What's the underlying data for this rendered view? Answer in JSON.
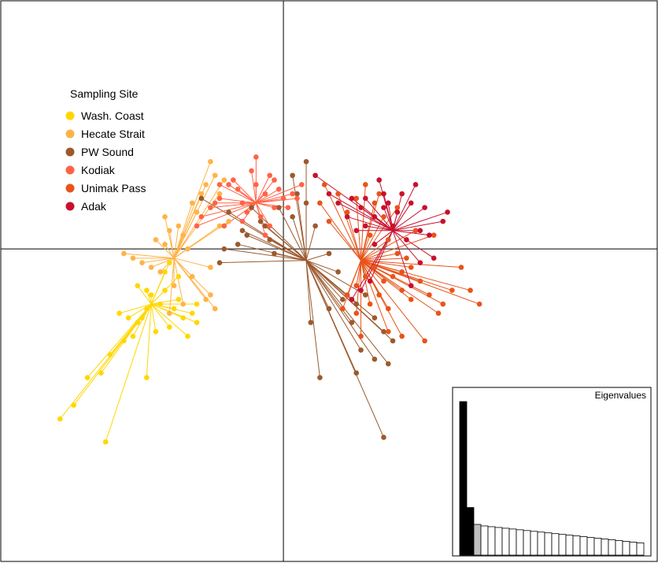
{
  "chart_data": {
    "type": "scatter",
    "subtype": "dapc-star-plot",
    "title": "",
    "xlabel": "",
    "ylabel": "",
    "xlim": [
      -6.2,
      8.2
    ],
    "ylim": [
      -6.8,
      5.4
    ],
    "axes_lines_at_origin": true,
    "grid": false,
    "legend": {
      "title": "Sampling Site",
      "placement": "top-left",
      "entries": [
        "Wash. Coast",
        "Hecate Strait",
        "PW Sound",
        "Kodiak",
        "Unimak Pass",
        "Adak"
      ]
    },
    "series": [
      {
        "name": "Wash. Coast",
        "color": "#FFD700",
        "centroid": [
          -2.9,
          -1.2
        ],
        "points": [
          [
            -4.9,
            -3.7
          ],
          [
            -4.6,
            -3.4
          ],
          [
            -4.3,
            -2.8
          ],
          [
            -4.0,
            -2.7
          ],
          [
            -3.8,
            -2.3
          ],
          [
            -3.5,
            -2.0
          ],
          [
            -3.4,
            -1.5
          ],
          [
            -3.3,
            -1.9
          ],
          [
            -3.2,
            -1.6
          ],
          [
            -3.1,
            -1.5
          ],
          [
            -3.0,
            -1.3
          ],
          [
            -3.0,
            -0.9
          ],
          [
            -2.9,
            -1.0
          ],
          [
            -2.8,
            -1.8
          ],
          [
            -2.7,
            -1.2
          ],
          [
            -2.6,
            -0.9
          ],
          [
            -2.5,
            -1.7
          ],
          [
            -2.4,
            -1.3
          ],
          [
            -2.3,
            -1.1
          ],
          [
            -2.2,
            -1.5
          ],
          [
            -2.1,
            -1.9
          ],
          [
            -2.0,
            -1.4
          ],
          [
            -1.9,
            -1.2
          ],
          [
            -1.9,
            -1.6
          ],
          [
            -3.2,
            -0.8
          ],
          [
            -2.6,
            -0.5
          ],
          [
            -2.5,
            -0.3
          ],
          [
            -2.3,
            -0.6
          ],
          [
            -3.6,
            -1.4
          ],
          [
            -3.0,
            -2.8
          ],
          [
            -3.9,
            -4.2
          ]
        ]
      },
      {
        "name": "Hecate Strait",
        "color": "#FFB347",
        "centroid": [
          -2.4,
          -0.2
        ],
        "points": [
          [
            -3.3,
            -0.2
          ],
          [
            -3.1,
            -0.3
          ],
          [
            -2.9,
            -0.4
          ],
          [
            -2.7,
            -0.5
          ],
          [
            -2.6,
            0.1
          ],
          [
            -2.5,
            0.4
          ],
          [
            -2.3,
            0.5
          ],
          [
            -2.2,
            0.3
          ],
          [
            -2.1,
            0.0
          ],
          [
            -2.0,
            -0.6
          ],
          [
            -1.9,
            0.8
          ],
          [
            -1.8,
            1.2
          ],
          [
            -1.7,
            1.4
          ],
          [
            -1.6,
            1.9
          ],
          [
            -1.5,
            1.6
          ],
          [
            -1.4,
            1.2
          ],
          [
            -1.6,
            -1.0
          ],
          [
            -1.5,
            -1.3
          ],
          [
            -1.6,
            -0.4
          ],
          [
            -2.8,
            0.2
          ],
          [
            -2.4,
            -0.8
          ],
          [
            -2.6,
            0.7
          ],
          [
            -1.2,
            0.6
          ],
          [
            -1.4,
            0.5
          ],
          [
            -2.0,
            1.0
          ],
          [
            -1.7,
            -1.1
          ],
          [
            -2.2,
            -1.2
          ],
          [
            -1.3,
            1.5
          ],
          [
            -2.5,
            -1.4
          ],
          [
            -3.5,
            -0.1
          ]
        ]
      },
      {
        "name": "PW Sound",
        "color": "#9B5A2E",
        "centroid": [
          0.5,
          -0.25
        ],
        "points": [
          [
            -1.3,
            0.0
          ],
          [
            -1.0,
            0.1
          ],
          [
            -0.8,
            0.3
          ],
          [
            -0.5,
            0.6
          ],
          [
            -0.3,
            0.2
          ],
          [
            -0.2,
            -0.1
          ],
          [
            -0.4,
            0.5
          ],
          [
            -0.7,
            0.9
          ],
          [
            -0.1,
            0.9
          ],
          [
            0.2,
            0.7
          ],
          [
            0.3,
            1.2
          ],
          [
            0.5,
            1.0
          ],
          [
            0.7,
            0.5
          ],
          [
            0.5,
            1.9
          ],
          [
            0.2,
            1.6
          ],
          [
            1.0,
            -0.1
          ],
          [
            1.2,
            -0.5
          ],
          [
            1.3,
            -1.1
          ],
          [
            1.5,
            -1.6
          ],
          [
            1.6,
            -1.2
          ],
          [
            1.8,
            -1.0
          ],
          [
            2.0,
            -1.5
          ],
          [
            2.2,
            -1.8
          ],
          [
            2.4,
            -2.0
          ],
          [
            1.7,
            -2.2
          ],
          [
            2.0,
            -2.4
          ],
          [
            2.3,
            -2.5
          ],
          [
            1.6,
            -2.7
          ],
          [
            0.8,
            -2.8
          ],
          [
            0.6,
            -1.6
          ],
          [
            1.0,
            -1.3
          ],
          [
            2.2,
            -4.1
          ],
          [
            -1.8,
            1.1
          ],
          [
            -1.2,
            0.8
          ],
          [
            -0.9,
            0.4
          ],
          [
            -1.4,
            -0.3
          ]
        ]
      },
      {
        "name": "Kodiak",
        "color": "#FF6347",
        "centroid": [
          -0.6,
          1.0
        ],
        "points": [
          [
            -0.6,
            2.0
          ],
          [
            -0.7,
            1.7
          ],
          [
            -0.3,
            1.6
          ],
          [
            -0.2,
            1.5
          ],
          [
            -0.1,
            1.3
          ],
          [
            0.0,
            1.1
          ],
          [
            0.1,
            0.9
          ],
          [
            0.2,
            1.2
          ],
          [
            -0.4,
            1.2
          ],
          [
            -1.0,
            1.3
          ],
          [
            -1.2,
            1.4
          ],
          [
            -1.4,
            1.1
          ],
          [
            -1.5,
            1.0
          ],
          [
            -1.6,
            0.9
          ],
          [
            -1.8,
            0.7
          ],
          [
            -1.9,
            0.5
          ],
          [
            -0.9,
            0.6
          ],
          [
            -0.8,
            0.8
          ],
          [
            -0.5,
            0.7
          ],
          [
            -0.2,
            0.9
          ],
          [
            -1.4,
            1.4
          ],
          [
            -1.1,
            1.5
          ],
          [
            -0.6,
            1.4
          ],
          [
            0.3,
            1.1
          ],
          [
            0.4,
            1.4
          ],
          [
            -0.3,
            0.5
          ],
          [
            -1.3,
            0.5
          ],
          [
            -0.9,
            1.0
          ],
          [
            -0.4,
            0.3
          ]
        ]
      },
      {
        "name": "Unimak Pass",
        "color": "#E8541A",
        "centroid": [
          1.7,
          -0.25
        ],
        "points": [
          [
            0.9,
            1.4
          ],
          [
            0.8,
            1.0
          ],
          [
            1.0,
            0.6
          ],
          [
            1.2,
            1.2
          ],
          [
            1.4,
            0.8
          ],
          [
            1.6,
            1.1
          ],
          [
            1.8,
            1.4
          ],
          [
            2.0,
            1.0
          ],
          [
            2.2,
            0.7
          ],
          [
            1.9,
            0.3
          ],
          [
            2.3,
            0.2
          ],
          [
            2.5,
            -0.1
          ],
          [
            2.7,
            -0.2
          ],
          [
            2.8,
            -0.4
          ],
          [
            2.6,
            -0.5
          ],
          [
            2.4,
            -0.6
          ],
          [
            2.2,
            -0.7
          ],
          [
            2.0,
            -0.4
          ],
          [
            1.8,
            -0.6
          ],
          [
            1.6,
            -0.8
          ],
          [
            1.4,
            -1.0
          ],
          [
            1.3,
            -1.3
          ],
          [
            1.6,
            -1.4
          ],
          [
            1.9,
            -1.2
          ],
          [
            2.1,
            -1.0
          ],
          [
            2.3,
            -1.3
          ],
          [
            2.6,
            -0.9
          ],
          [
            2.8,
            -1.1
          ],
          [
            3.0,
            -0.7
          ],
          [
            3.2,
            -1.0
          ],
          [
            3.4,
            -1.4
          ],
          [
            3.7,
            -0.9
          ],
          [
            3.9,
            -0.4
          ],
          [
            4.1,
            -0.9
          ],
          [
            4.3,
            -1.2
          ],
          [
            3.5,
            -1.2
          ],
          [
            2.9,
            0.4
          ],
          [
            3.3,
            0.3
          ],
          [
            2.5,
            0.9
          ],
          [
            2.1,
            1.2
          ],
          [
            1.7,
            -1.9
          ],
          [
            2.3,
            -1.8
          ],
          [
            2.6,
            -1.9
          ],
          [
            3.1,
            -2.0
          ]
        ]
      },
      {
        "name": "Adak",
        "color": "#C8102E",
        "centroid": [
          2.4,
          0.4
        ],
        "points": [
          [
            0.7,
            1.6
          ],
          [
            1.0,
            1.2
          ],
          [
            1.2,
            1.0
          ],
          [
            1.4,
            0.7
          ],
          [
            1.5,
            1.1
          ],
          [
            1.7,
            0.9
          ],
          [
            1.8,
            0.5
          ],
          [
            2.0,
            0.7
          ],
          [
            2.1,
            1.5
          ],
          [
            2.2,
            1.2
          ],
          [
            2.3,
            1.0
          ],
          [
            2.5,
            0.8
          ],
          [
            2.6,
            1.2
          ],
          [
            2.8,
            1.0
          ],
          [
            3.0,
            0.4
          ],
          [
            3.2,
            0.3
          ],
          [
            3.5,
            0.6
          ],
          [
            3.1,
            0.9
          ],
          [
            2.9,
            1.4
          ],
          [
            2.7,
            0.2
          ],
          [
            2.4,
            0.5
          ],
          [
            2.0,
            0.1
          ],
          [
            1.8,
            1.1
          ],
          [
            1.6,
            0.4
          ],
          [
            3.3,
            -0.2
          ],
          [
            3.6,
            0.8
          ],
          [
            2.2,
            0.9
          ],
          [
            1.7,
            -0.9
          ],
          [
            1.5,
            -1.1
          ],
          [
            1.9,
            -0.7
          ],
          [
            2.8,
            -0.8
          ],
          [
            3.0,
            -0.3
          ]
        ]
      }
    ],
    "inset": {
      "title": "Eigenvalues",
      "type": "bar",
      "values": [
        100,
        31,
        20,
        19,
        18.5,
        18,
        17.5,
        17,
        16.5,
        16,
        15.5,
        15,
        14.5,
        14,
        13.5,
        13,
        12.5,
        12,
        11.5,
        11,
        10.5,
        10,
        9.5,
        9,
        8.5,
        8,
        7.5,
        7,
        6.5,
        6
      ],
      "retained": 2,
      "highlighted": 3,
      "colors": {
        "retained": "#000000",
        "highlighted": "#BEBEBE",
        "other": "#FFFFFF"
      }
    }
  }
}
